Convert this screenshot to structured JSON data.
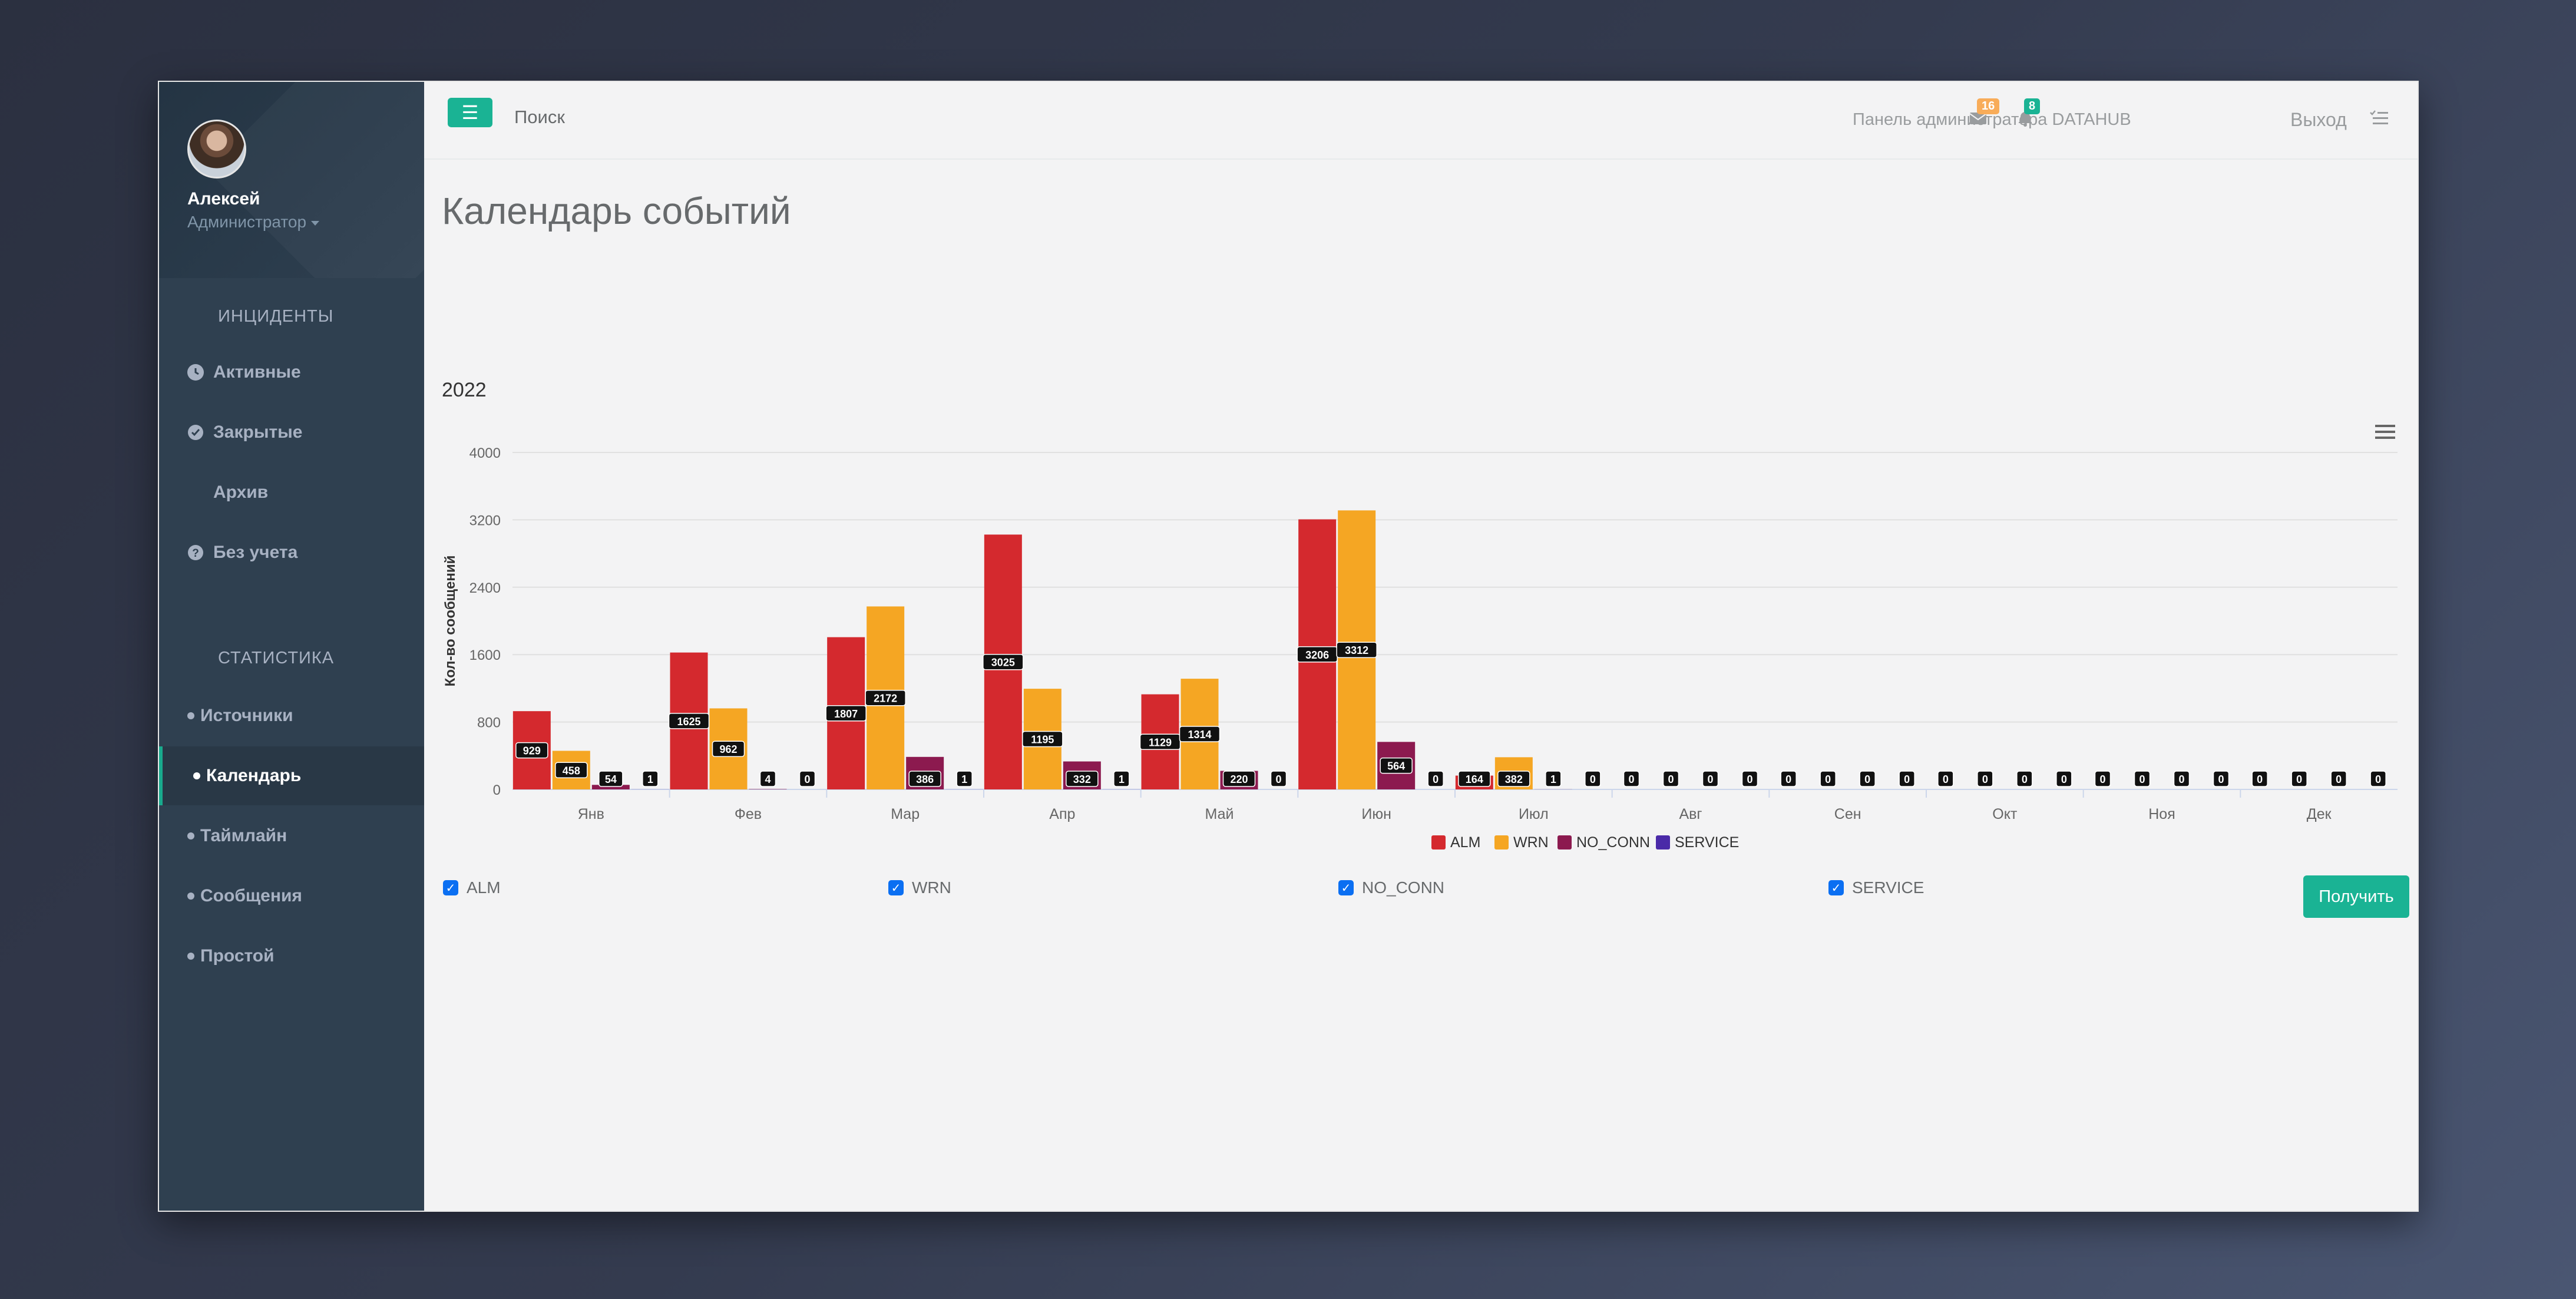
{
  "sidebar": {
    "user_name": "Алексей",
    "user_role": "Администратор",
    "section_incidents": "ИНЦИДЕНТЫ",
    "incidents": [
      {
        "label": "Активные",
        "icon": "clock-icon"
      },
      {
        "label": "Закрытые",
        "icon": "check-circle-icon"
      },
      {
        "label": "Архив",
        "icon": "grid-icon"
      },
      {
        "label": "Без учета",
        "icon": "question-circle-icon"
      }
    ],
    "section_stats": "СТАТИСТИКА",
    "stats": [
      {
        "label": "Источники",
        "active": false
      },
      {
        "label": "Календарь",
        "active": true
      },
      {
        "label": "Таймлайн",
        "active": false
      },
      {
        "label": "Сообщения",
        "active": false
      },
      {
        "label": "Простой",
        "active": false
      }
    ]
  },
  "topbar": {
    "menu_icon": "hamburger-icon",
    "search_label": "Поиск",
    "admin_title": "Панель администратора DATAHUB",
    "mail_count": "16",
    "bell_count": "8",
    "logout_label": "Выход"
  },
  "page": {
    "title": "Календарь событий",
    "year": "2022"
  },
  "colors": {
    "ALM": "#d4292e",
    "WRN": "#f5a623",
    "NO_CONN": "#8c1a4f",
    "SERVICE": "#4a2aa8",
    "accent": "#1ab394"
  },
  "chart_data": {
    "type": "bar",
    "ylabel": "Кол-во сообщений",
    "ylim": [
      0,
      4000
    ],
    "yticks": [
      "0",
      "800",
      "1600",
      "2400",
      "3200",
      "4000"
    ],
    "categories": [
      "Янв",
      "Фев",
      "Мар",
      "Апр",
      "Май",
      "Июн",
      "Июл",
      "Авг",
      "Сен",
      "Окт",
      "Ноя",
      "Дек"
    ],
    "series": [
      {
        "name": "ALM",
        "values": [
          929,
          1625,
          1807,
          3025,
          1129,
          3206,
          164,
          0,
          0,
          0,
          0,
          0
        ]
      },
      {
        "name": "WRN",
        "values": [
          458,
          962,
          2172,
          1195,
          1314,
          3312,
          382,
          0,
          0,
          0,
          0,
          0
        ]
      },
      {
        "name": "NO_CONN",
        "values": [
          54,
          4,
          386,
          332,
          220,
          564,
          1,
          0,
          0,
          0,
          0,
          0
        ]
      },
      {
        "name": "SERVICE",
        "values": [
          1,
          0,
          1,
          1,
          0,
          0,
          0,
          0,
          0,
          0,
          0,
          0
        ]
      }
    ],
    "legend_position": "bottom"
  },
  "filters": {
    "checks": [
      {
        "label": "ALM",
        "checked": true
      },
      {
        "label": "WRN",
        "checked": true
      },
      {
        "label": "NO_CONN",
        "checked": true
      },
      {
        "label": "SERVICE",
        "checked": true
      }
    ],
    "submit_label": "Получить"
  }
}
